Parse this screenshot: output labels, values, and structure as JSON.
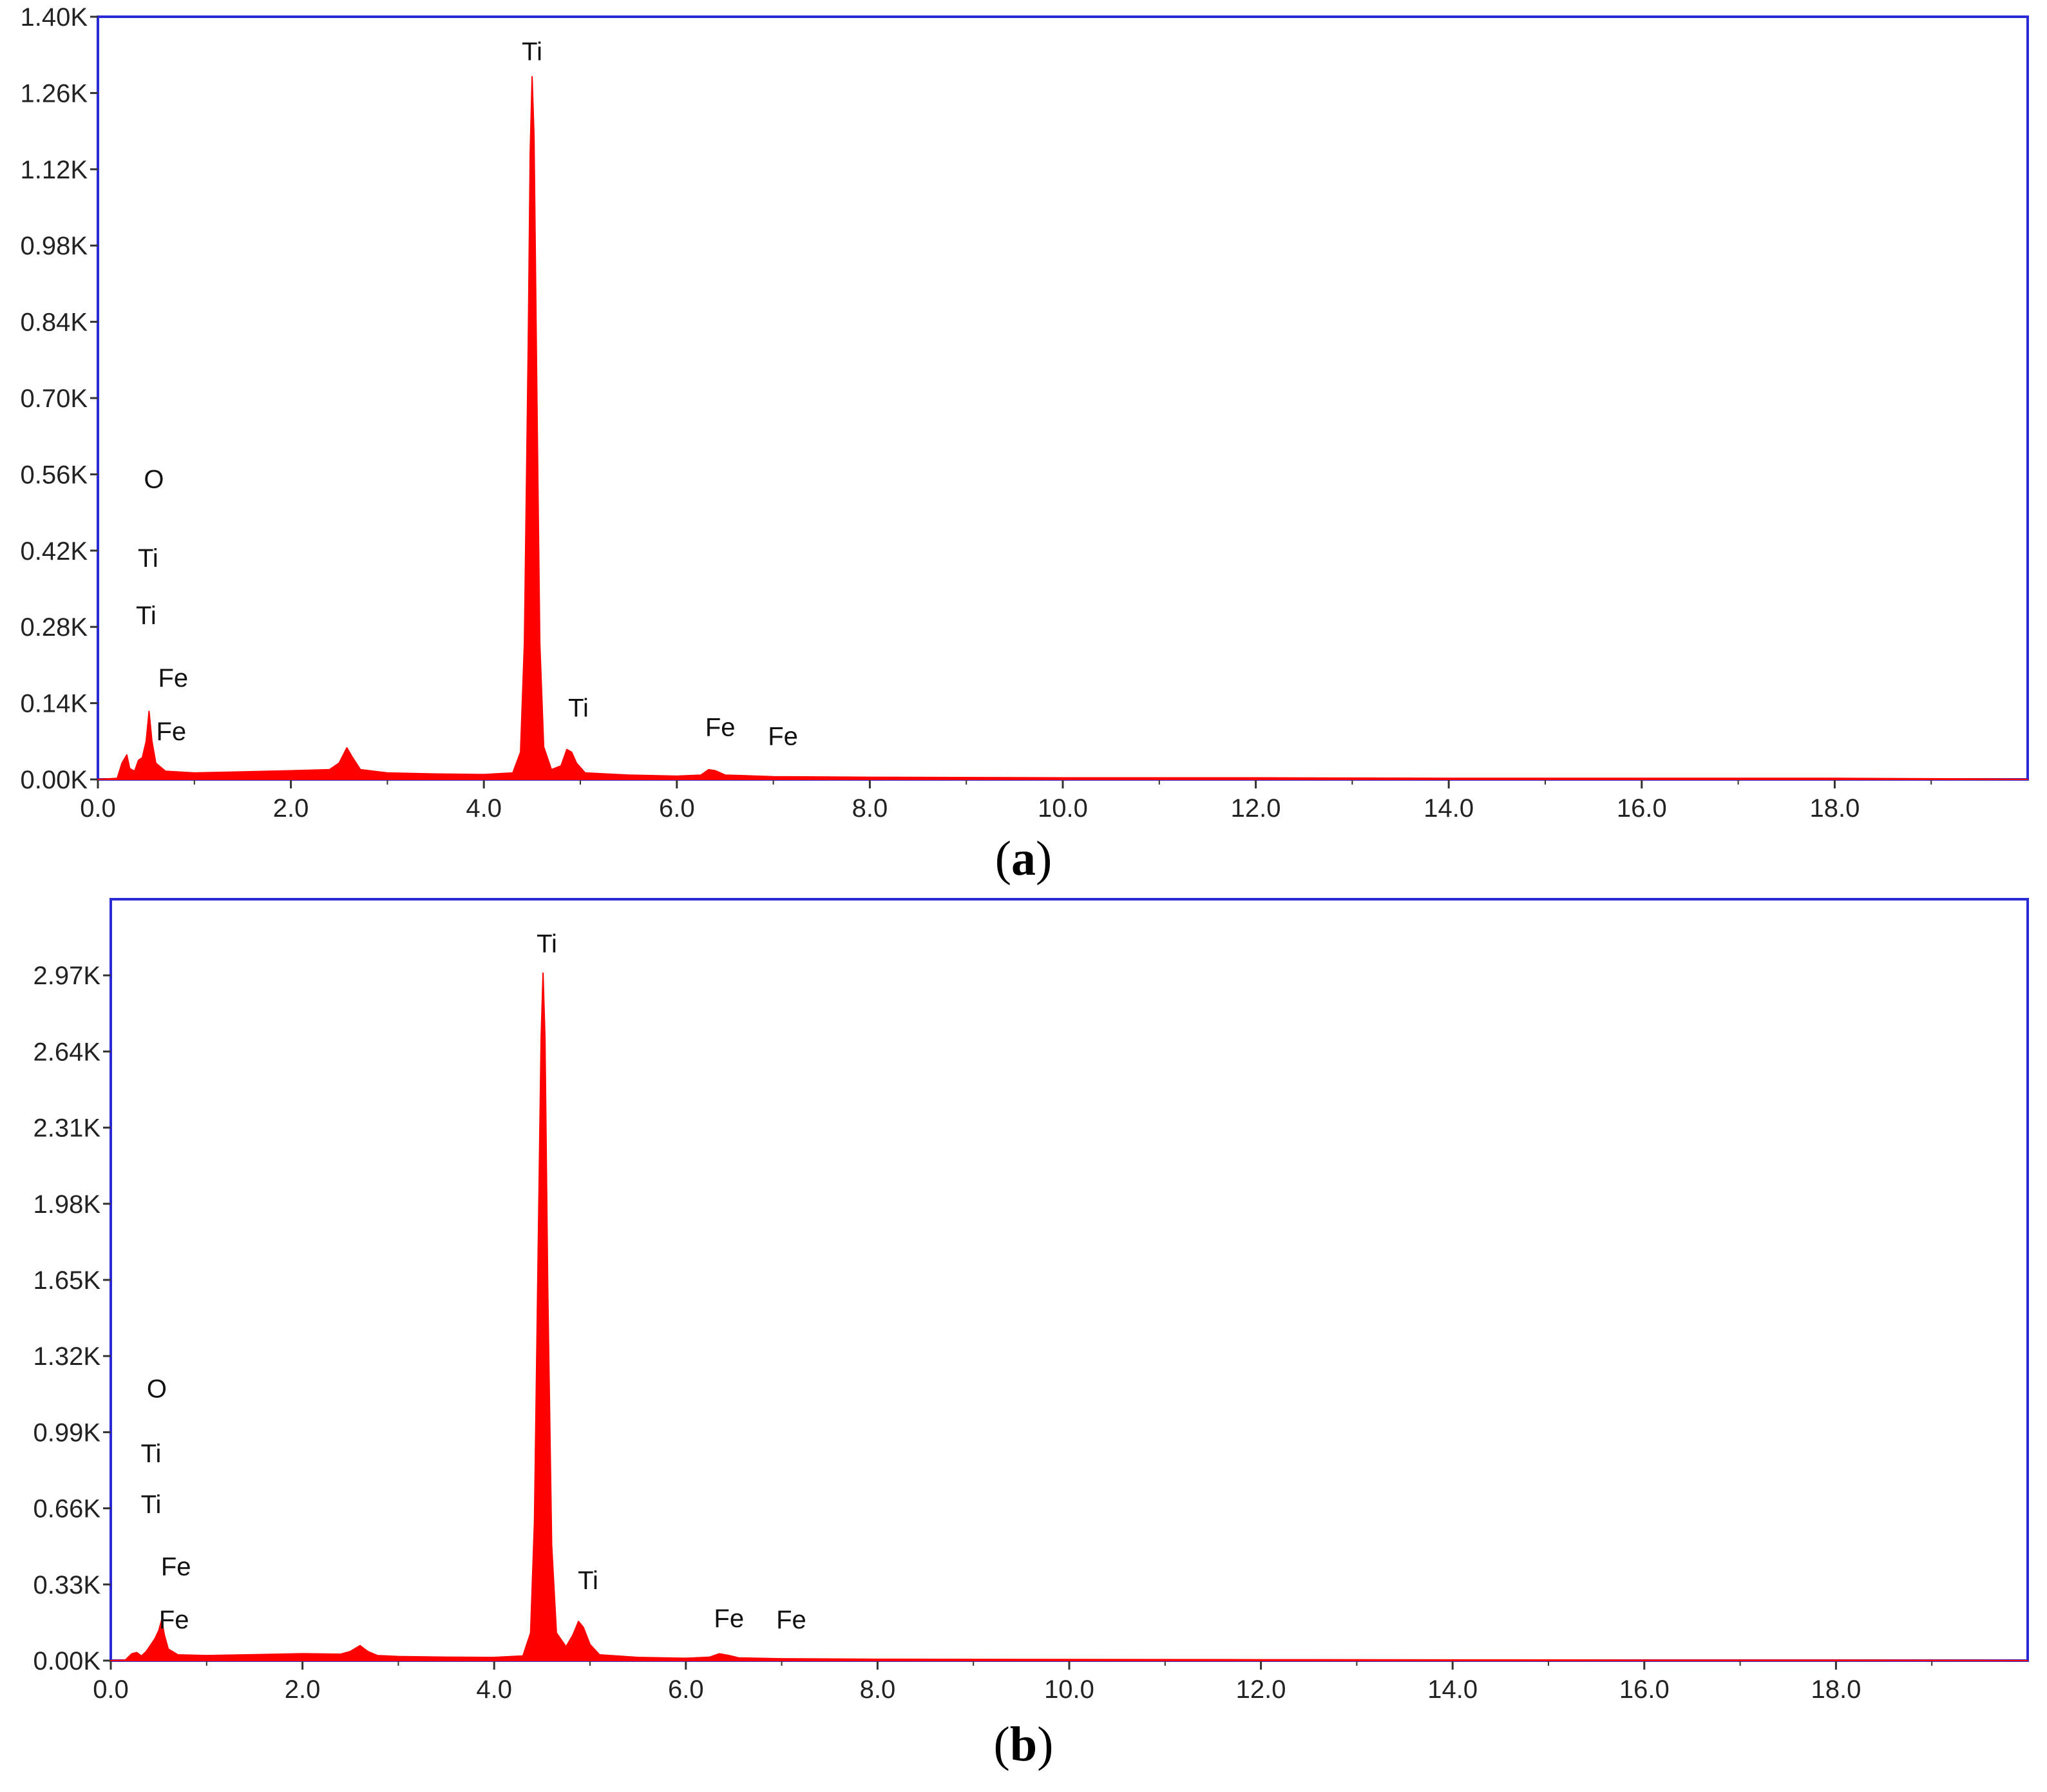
{
  "chart_data": [
    {
      "type": "area",
      "panel_label": "a",
      "xlim": [
        0,
        20
      ],
      "ylim": [
        0,
        1400
      ],
      "x_ticks": [
        {
          "value": 0,
          "label": "0.0"
        },
        {
          "value": 2,
          "label": "2.0"
        },
        {
          "value": 4,
          "label": "4.0"
        },
        {
          "value": 6,
          "label": "6.0"
        },
        {
          "value": 8,
          "label": "8.0"
        },
        {
          "value": 10,
          "label": "10.0"
        },
        {
          "value": 12,
          "label": "12.0"
        },
        {
          "value": 14,
          "label": "14.0"
        },
        {
          "value": 16,
          "label": "16.0"
        },
        {
          "value": 18,
          "label": "18.0"
        }
      ],
      "y_ticks": [
        {
          "value": 0,
          "label": "0.00K"
        },
        {
          "value": 140,
          "label": "0.14K"
        },
        {
          "value": 280,
          "label": "0.28K"
        },
        {
          "value": 420,
          "label": "0.42K"
        },
        {
          "value": 560,
          "label": "0.56K"
        },
        {
          "value": 700,
          "label": "0.70K"
        },
        {
          "value": 840,
          "label": "0.84K"
        },
        {
          "value": 980,
          "label": "0.98K"
        },
        {
          "value": 1120,
          "label": "1.12K"
        },
        {
          "value": 1260,
          "label": "1.26K"
        },
        {
          "value": 1400,
          "label": "1.40K"
        }
      ],
      "series": [
        {
          "color": "#ff0000",
          "points": [
            [
              0.0,
              0
            ],
            [
              0.2,
              2
            ],
            [
              0.25,
              30
            ],
            [
              0.3,
              45
            ],
            [
              0.33,
              20
            ],
            [
              0.38,
              15
            ],
            [
              0.42,
              35
            ],
            [
              0.46,
              40
            ],
            [
              0.5,
              70
            ],
            [
              0.53,
              125
            ],
            [
              0.56,
              70
            ],
            [
              0.6,
              30
            ],
            [
              0.7,
              15
            ],
            [
              1.0,
              12
            ],
            [
              1.5,
              14
            ],
            [
              2.0,
              16
            ],
            [
              2.4,
              18
            ],
            [
              2.5,
              30
            ],
            [
              2.58,
              58
            ],
            [
              2.64,
              40
            ],
            [
              2.72,
              18
            ],
            [
              3.0,
              12
            ],
            [
              3.5,
              10
            ],
            [
              4.0,
              9
            ],
            [
              4.3,
              12
            ],
            [
              4.38,
              50
            ],
            [
              4.42,
              250
            ],
            [
              4.46,
              800
            ],
            [
              4.48,
              1150
            ],
            [
              4.5,
              1290
            ],
            [
              4.52,
              1180
            ],
            [
              4.55,
              700
            ],
            [
              4.58,
              250
            ],
            [
              4.62,
              60
            ],
            [
              4.7,
              18
            ],
            [
              4.8,
              25
            ],
            [
              4.86,
              55
            ],
            [
              4.91,
              50
            ],
            [
              4.96,
              30
            ],
            [
              5.05,
              12
            ],
            [
              5.5,
              8
            ],
            [
              6.0,
              6
            ],
            [
              6.25,
              8
            ],
            [
              6.33,
              18
            ],
            [
              6.4,
              16
            ],
            [
              6.5,
              8
            ],
            [
              7.0,
              5
            ],
            [
              8.0,
              4
            ],
            [
              10.0,
              3
            ],
            [
              12.0,
              3
            ],
            [
              14.0,
              2
            ],
            [
              16.0,
              2
            ],
            [
              18.0,
              2
            ],
            [
              19.5,
              1
            ],
            [
              20.0,
              0
            ]
          ]
        }
      ],
      "annotations": [
        {
          "text": "Ti",
          "x": 4.5,
          "y": 1320
        },
        {
          "text": "O",
          "x": 0.58,
          "y": 535
        },
        {
          "text": "Ti",
          "x": 0.52,
          "y": 390
        },
        {
          "text": "Ti",
          "x": 0.5,
          "y": 285
        },
        {
          "text": "Fe",
          "x": 0.78,
          "y": 170
        },
        {
          "text": "Fe",
          "x": 0.76,
          "y": 72
        },
        {
          "text": "Ti",
          "x": 4.98,
          "y": 115
        },
        {
          "text": "Fe",
          "x": 6.45,
          "y": 80
        },
        {
          "text": "Fe",
          "x": 7.1,
          "y": 63
        }
      ]
    },
    {
      "type": "area",
      "panel_label": "b",
      "xlim": [
        0,
        20
      ],
      "ylim": [
        0,
        3300
      ],
      "x_ticks": [
        {
          "value": 0,
          "label": "0.0"
        },
        {
          "value": 2,
          "label": "2.0"
        },
        {
          "value": 4,
          "label": "4.0"
        },
        {
          "value": 6,
          "label": "6.0"
        },
        {
          "value": 8,
          "label": "8.0"
        },
        {
          "value": 10,
          "label": "10.0"
        },
        {
          "value": 12,
          "label": "12.0"
        },
        {
          "value": 14,
          "label": "14.0"
        },
        {
          "value": 16,
          "label": "16.0"
        },
        {
          "value": 18,
          "label": "18.0"
        }
      ],
      "y_ticks": [
        {
          "value": 0,
          "label": "0.00K"
        },
        {
          "value": 330,
          "label": "0.33K"
        },
        {
          "value": 660,
          "label": "0.66K"
        },
        {
          "value": 990,
          "label": "0.99K"
        },
        {
          "value": 1320,
          "label": "1.32K"
        },
        {
          "value": 1650,
          "label": "1.65K"
        },
        {
          "value": 1980,
          "label": "1.98K"
        },
        {
          "value": 2310,
          "label": "2.31K"
        },
        {
          "value": 2640,
          "label": "2.64K"
        },
        {
          "value": 2970,
          "label": "2.97K"
        }
      ],
      "series": [
        {
          "color": "#ff0000",
          "points": [
            [
              0.0,
              0
            ],
            [
              0.15,
              2
            ],
            [
              0.22,
              30
            ],
            [
              0.27,
              35
            ],
            [
              0.32,
              20
            ],
            [
              0.37,
              40
            ],
            [
              0.42,
              70
            ],
            [
              0.46,
              95
            ],
            [
              0.5,
              130
            ],
            [
              0.53,
              175
            ],
            [
              0.56,
              110
            ],
            [
              0.6,
              50
            ],
            [
              0.7,
              25
            ],
            [
              1.0,
              22
            ],
            [
              1.5,
              26
            ],
            [
              2.0,
              30
            ],
            [
              2.4,
              28
            ],
            [
              2.5,
              40
            ],
            [
              2.6,
              65
            ],
            [
              2.68,
              40
            ],
            [
              2.78,
              22
            ],
            [
              3.0,
              18
            ],
            [
              3.5,
              15
            ],
            [
              4.0,
              14
            ],
            [
              4.3,
              20
            ],
            [
              4.38,
              120
            ],
            [
              4.42,
              600
            ],
            [
              4.46,
              1800
            ],
            [
              4.49,
              2700
            ],
            [
              4.51,
              2980
            ],
            [
              4.53,
              2700
            ],
            [
              4.56,
              1600
            ],
            [
              4.6,
              500
            ],
            [
              4.65,
              120
            ],
            [
              4.75,
              60
            ],
            [
              4.82,
              110
            ],
            [
              4.88,
              170
            ],
            [
              4.93,
              145
            ],
            [
              5.0,
              70
            ],
            [
              5.1,
              25
            ],
            [
              5.5,
              14
            ],
            [
              6.0,
              10
            ],
            [
              6.25,
              15
            ],
            [
              6.35,
              30
            ],
            [
              6.45,
              22
            ],
            [
              6.55,
              12
            ],
            [
              7.0,
              8
            ],
            [
              8.0,
              6
            ],
            [
              10.0,
              5
            ],
            [
              12.0,
              4
            ],
            [
              14.0,
              3
            ],
            [
              14.6,
              3
            ],
            [
              16.0,
              2
            ],
            [
              18.0,
              2
            ],
            [
              19.5,
              1
            ],
            [
              20.0,
              0
            ]
          ]
        }
      ],
      "annotations": [
        {
          "text": "Ti",
          "x": 4.55,
          "y": 3070
        },
        {
          "text": "O",
          "x": 0.48,
          "y": 1140
        },
        {
          "text": "Ti",
          "x": 0.42,
          "y": 860
        },
        {
          "text": "Ti",
          "x": 0.42,
          "y": 640
        },
        {
          "text": "Fe",
          "x": 0.68,
          "y": 370
        },
        {
          "text": "Fe",
          "x": 0.66,
          "y": 140
        },
        {
          "text": "Ti",
          "x": 4.98,
          "y": 310
        },
        {
          "text": "Fe",
          "x": 6.45,
          "y": 145
        },
        {
          "text": "Fe",
          "x": 7.1,
          "y": 140
        }
      ]
    }
  ]
}
